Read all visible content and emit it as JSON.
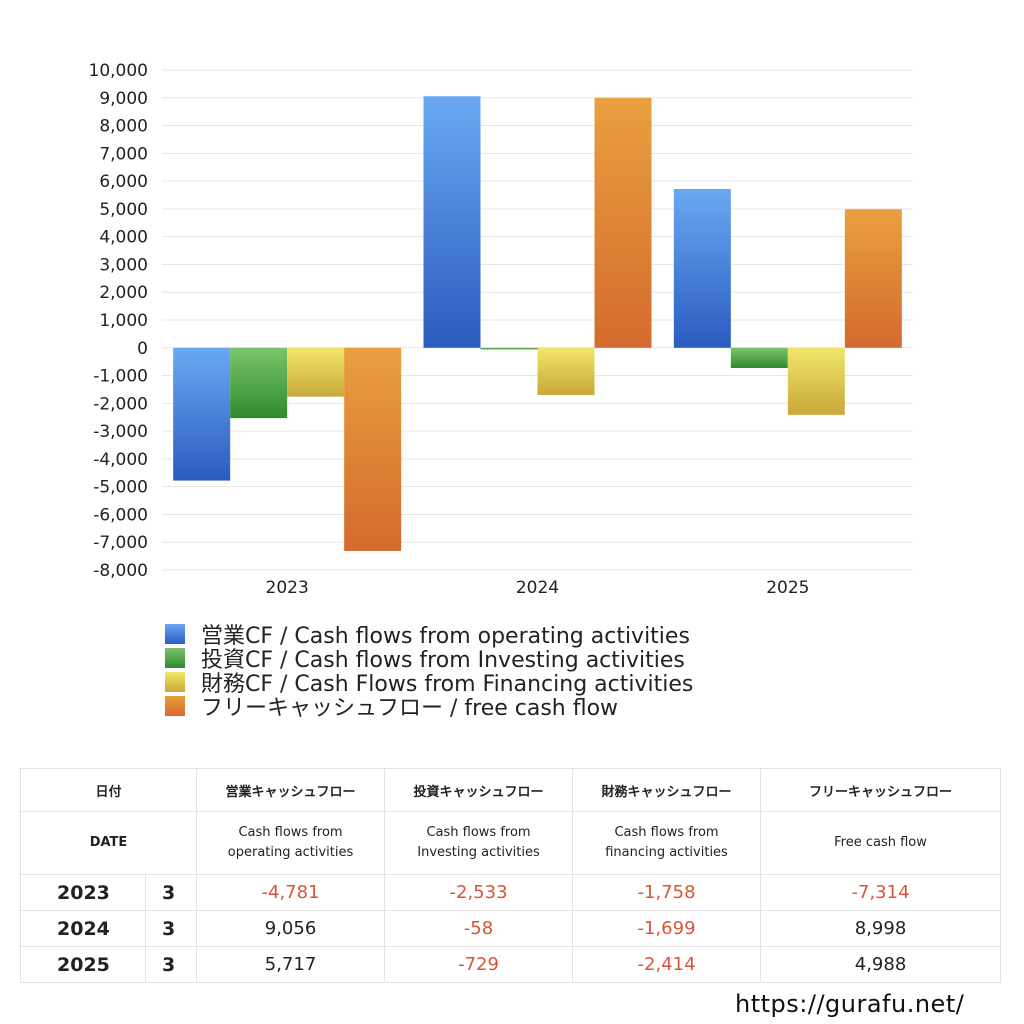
{
  "chart_data": {
    "type": "bar",
    "categories": [
      "2023",
      "2024",
      "2025"
    ],
    "series": [
      {
        "name": "営業CF / Cash flows from operating activities",
        "values": [
          -4781,
          9056,
          5717
        ],
        "color_top": "#6aa8f2",
        "color_bottom": "#2a5cc0"
      },
      {
        "name": "投資CF / Cash flows from Investing activities",
        "values": [
          -2533,
          -58,
          -729
        ],
        "color_top": "#7cc36a",
        "color_bottom": "#2f8a2f"
      },
      {
        "name": "財務CF / Cash Flows from Financing activities",
        "values": [
          -1758,
          -1699,
          -2414
        ],
        "color_top": "#f2e66a",
        "color_bottom": "#c9a83a"
      },
      {
        "name": "フリーキャッシュフロー / free cash flow",
        "values": [
          -7314,
          8998,
          4988
        ],
        "color_top": "#e9a03e",
        "color_bottom": "#d46a2e"
      }
    ],
    "ylim": [
      -8000,
      10000
    ],
    "yticks": [
      "10,000",
      "9,000",
      "8,000",
      "7,000",
      "6,000",
      "5,000",
      "4,000",
      "3,000",
      "2,000",
      "1,000",
      "0",
      "-1,000",
      "-2,000",
      "-3,000",
      "-4,000",
      "-5,000",
      "-6,000",
      "-7,000",
      "-8,000"
    ],
    "ytick_values": [
      10000,
      9000,
      8000,
      7000,
      6000,
      5000,
      4000,
      3000,
      2000,
      1000,
      0,
      -1000,
      -2000,
      -3000,
      -4000,
      -5000,
      -6000,
      -7000,
      -8000
    ],
    "grid": true,
    "legend_position": "bottom-left"
  },
  "table": {
    "header_jp": {
      "date": "日付",
      "operating": "営業キャッシュフロー",
      "investing": "投資キャッシュフロー",
      "financing": "財務キャッシュフロー",
      "free": "フリーキャッシュフロー"
    },
    "header_en": {
      "date": "DATE",
      "operating_1": "Cash flows from",
      "operating_2": "operating activities",
      "investing_1": "Cash flows from",
      "investing_2": "Investing activities",
      "financing_1": "Cash flows from",
      "financing_2": "financing activities",
      "free": "Free cash flow"
    },
    "rows": [
      {
        "year": "2023",
        "month": "3",
        "operating": "-4,781",
        "investing": "-2,533",
        "financing": "-1,758",
        "free": "-7,314"
      },
      {
        "year": "2024",
        "month": "3",
        "operating": "9,056",
        "investing": "-58",
        "financing": "-1,699",
        "free": "8,998"
      },
      {
        "year": "2025",
        "month": "3",
        "operating": "5,717",
        "investing": "-729",
        "financing": "-2,414",
        "free": "4,988"
      }
    ]
  },
  "footer": {
    "url": "https://gurafu.net/"
  }
}
